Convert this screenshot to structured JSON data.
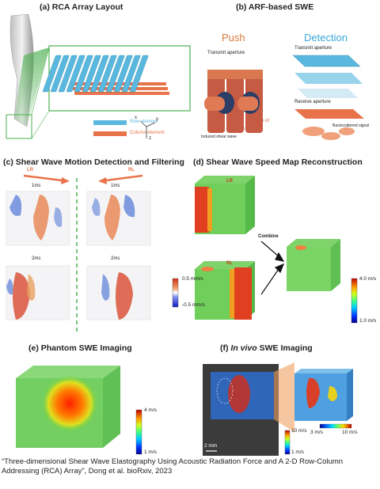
{
  "panels": {
    "a": {
      "title": "(a) RCA Array Layout",
      "row_label": "Row element",
      "col_label": "Column element",
      "axis_x": "x",
      "axis_y": "y",
      "axis_z": "z",
      "row_color": "#5ab8de",
      "col_color": "#e8734a"
    },
    "b": {
      "title": "(b) ARF-based SWE",
      "push_heading": "Push",
      "detection_heading": "Detection",
      "transmit_left": "Transmit aperture",
      "transmit_right": "Transmit aperture",
      "receive": "Receive aperture",
      "induced": "Induced shear wave",
      "push1": "Push #1",
      "push2": "Push #2",
      "backscatter": "Backscattered signal"
    },
    "c": {
      "title": "(c) Shear Wave Motion Detection and Filtering",
      "lr": "LR",
      "rl": "RL",
      "t1_left": "1ms",
      "t1_right": "1ms",
      "t2_left": "2ms",
      "t2_right": "2ms",
      "cb_max": "0.5 mm/s",
      "cb_min": "-0.5 mm/s"
    },
    "d": {
      "title": "(d) Shear Wave Speed Map Reconstruction",
      "lr": "LR",
      "rl": "RL",
      "combine": "Combine",
      "cb_max": "4.0 m/s",
      "cb_min": "1.0 m/s"
    },
    "e": {
      "title": "(e) Phantom SWE Imaging",
      "cb_max": "4 m/s",
      "cb_min": "1 m/s"
    },
    "f": {
      "title_prefix": "(f) ",
      "title_italic": "In vivo",
      "title_suffix": " SWE Imaging",
      "cb_max": "10 m/s",
      "cb_min": "1 m/s",
      "hbar_min": "3 m/s",
      "hbar_max": "10 m/s",
      "scale": "2 mm"
    }
  },
  "caption": "“Three-dimensional Shear Wave Elastography Using Acoustic Radiation Force and A 2-D Row-Column Addressing (RCA) Array”, Dong et al. bioRxiv, 2023"
}
